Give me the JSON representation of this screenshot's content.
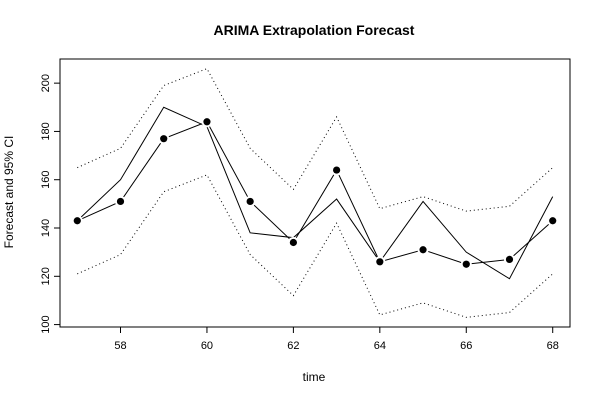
{
  "chart_data": {
    "type": "line",
    "title": "ARIMA Extrapolation Forecast",
    "xlabel": "time",
    "ylabel": "Forecast and 95% CI",
    "xlim": [
      56.6,
      68.4
    ],
    "ylim": [
      99,
      210
    ],
    "x_ticks": [
      58,
      60,
      62,
      64,
      66,
      68
    ],
    "y_ticks": [
      100,
      120,
      140,
      160,
      180,
      200
    ],
    "x": [
      57,
      58,
      59,
      60,
      61,
      62,
      63,
      64,
      65,
      66,
      67,
      68
    ],
    "series": [
      {
        "values": [
          143,
          160,
          190,
          182,
          138,
          136,
          152,
          126,
          151,
          130,
          119,
          153
        ],
        "style": "solid"
      },
      {
        "values": [
          143,
          151,
          177,
          184,
          151,
          134,
          164,
          126,
          131,
          125,
          127,
          143
        ],
        "style": "solid-with-points"
      },
      {
        "values": [
          165,
          173,
          199,
          206,
          173,
          156,
          186,
          148,
          153,
          147,
          149,
          165
        ],
        "style": "dotted"
      },
      {
        "values": [
          121,
          129,
          155,
          162,
          129,
          112,
          142,
          104,
          109,
          103,
          105,
          121
        ],
        "style": "dotted"
      }
    ],
    "grid": false,
    "legend": "none",
    "colors": {
      "line": "#000000",
      "background": "#ffffff"
    }
  }
}
